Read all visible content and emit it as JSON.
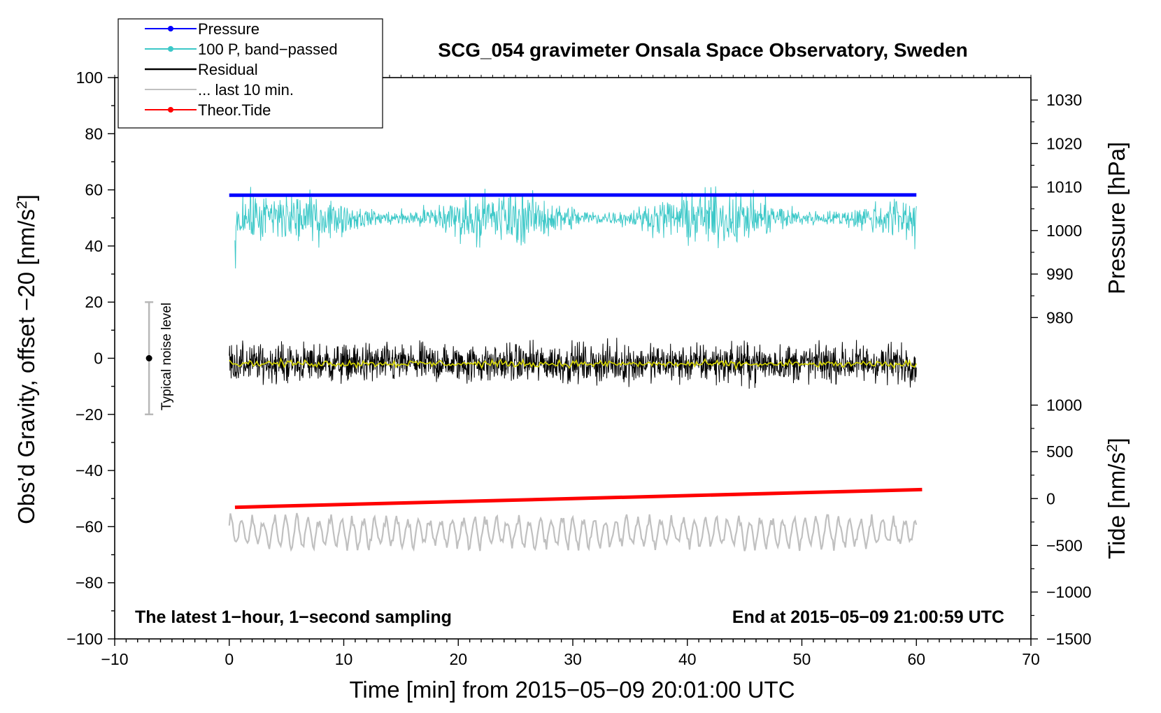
{
  "chart_data": {
    "type": "line",
    "title": "SCG_054 gravimeter Onsala Space Observatory, Sweden",
    "xlabel": "Time [min] from 2015−05−09 20:01:00 UTC",
    "ylabel": "Obs’d Gravity, offset −20 [nm/s",
    "ylabel_sup": "2",
    "ylabel_end": "]",
    "xlim": [
      -10,
      70
    ],
    "ylim": [
      -100,
      100
    ],
    "x_ticks": [
      {
        "value": -10,
        "label": "−10"
      },
      {
        "value": 0,
        "label": "0"
      },
      {
        "value": 10,
        "label": "10"
      },
      {
        "value": 20,
        "label": "20"
      },
      {
        "value": 30,
        "label": "30"
      },
      {
        "value": 40,
        "label": "40"
      },
      {
        "value": 50,
        "label": "50"
      },
      {
        "value": 60,
        "label": "60"
      },
      {
        "value": 70,
        "label": "70"
      }
    ],
    "y_ticks": [
      {
        "value": 100,
        "label": "100"
      },
      {
        "value": 80,
        "label": "80"
      },
      {
        "value": 60,
        "label": "60"
      },
      {
        "value": 40,
        "label": "40"
      },
      {
        "value": 20,
        "label": "20"
      },
      {
        "value": 0,
        "label": "0"
      },
      {
        "value": -20,
        "label": "−20"
      },
      {
        "value": -40,
        "label": "−40"
      },
      {
        "value": -60,
        "label": "−60"
      },
      {
        "value": -80,
        "label": "−80"
      },
      {
        "value": -100,
        "label": "−100"
      }
    ],
    "pressure_axis": {
      "label": "Pressure [hPa]",
      "ticks": [
        {
          "value": 1030,
          "label": "1030",
          "y": 92
        },
        {
          "value": 1020,
          "label": "1020",
          "y": 76.5
        },
        {
          "value": 1010,
          "label": "1010",
          "y": 61
        },
        {
          "value": 1000,
          "label": "1000",
          "y": 45.5
        },
        {
          "value": 990,
          "label": "990",
          "y": 30
        },
        {
          "value": 980,
          "label": "980",
          "y": 14.5
        }
      ]
    },
    "tide_axis": {
      "label": "Tide [nm/s",
      "label_sup": "2",
      "label_end": "]",
      "ticks": [
        {
          "value": 1000,
          "label": "1000",
          "y": -16.7
        },
        {
          "value": 500,
          "label": "500",
          "y": -33.3
        },
        {
          "value": 0,
          "label": "0",
          "y": -50
        },
        {
          "value": -500,
          "label": "−500",
          "y": -66.7
        },
        {
          "value": -1000,
          "label": "−1000",
          "y": -83.3
        },
        {
          "value": -1500,
          "label": "−1500",
          "y": -100
        }
      ]
    },
    "series": [
      {
        "name": "Pressure",
        "color": "#0000ff",
        "x": [
          0,
          60
        ],
        "y": [
          58.1,
          58.2
        ],
        "style": "thick-line",
        "level_hPa": 1008.5
      },
      {
        "name": "100 P, band−passed",
        "color": "#3cc8c8",
        "x_range": [
          0.5,
          60
        ],
        "mean": 50,
        "amplitude": 3.0,
        "start_dip": 32,
        "style": "noisy"
      },
      {
        "name": "Residual",
        "color": "#000000",
        "x_range": [
          0,
          60
        ],
        "mean": -1.8,
        "amplitude": 4.5,
        "style": "noisy"
      },
      {
        "name": "Residual (smoothed)",
        "color": "#d6d600",
        "x_range": [
          0,
          60
        ],
        "mean": -1.8,
        "amplitude": 0.6,
        "style": "smooth",
        "in_legend": false
      },
      {
        "name": "... last 10 min.",
        "color": "#c0c0c0",
        "x_range": [
          0,
          60
        ],
        "mean": -62,
        "amplitude": 5.5,
        "style": "oscillating"
      },
      {
        "name": "Theor.Tide",
        "color": "#ff0000",
        "x": [
          0.5,
          60.5
        ],
        "y": [
          -53.1,
          -46.8
        ],
        "style": "thick-line"
      }
    ],
    "noise_bar": {
      "x": -7,
      "center": 0,
      "half_range": 20,
      "label": "Typical noise level"
    },
    "annotations": {
      "bottom_left": "The latest 1−hour, 1−second sampling",
      "bottom_right": "End at 2015−05−09 21:00:59 UTC"
    },
    "legend": {
      "placement": "top-left",
      "entries": [
        {
          "label": "Pressure",
          "color": "#0000ff",
          "marker": true
        },
        {
          "label": "100 P, band−passed",
          "color": "#3cc8c8",
          "marker": true
        },
        {
          "label": "Residual",
          "color": "#000000",
          "marker": false
        },
        {
          "label": "... last 10 min.",
          "color": "#c0c0c0",
          "marker": false
        },
        {
          "label": "Theor.Tide",
          "color": "#ff0000",
          "marker": true
        }
      ]
    }
  }
}
